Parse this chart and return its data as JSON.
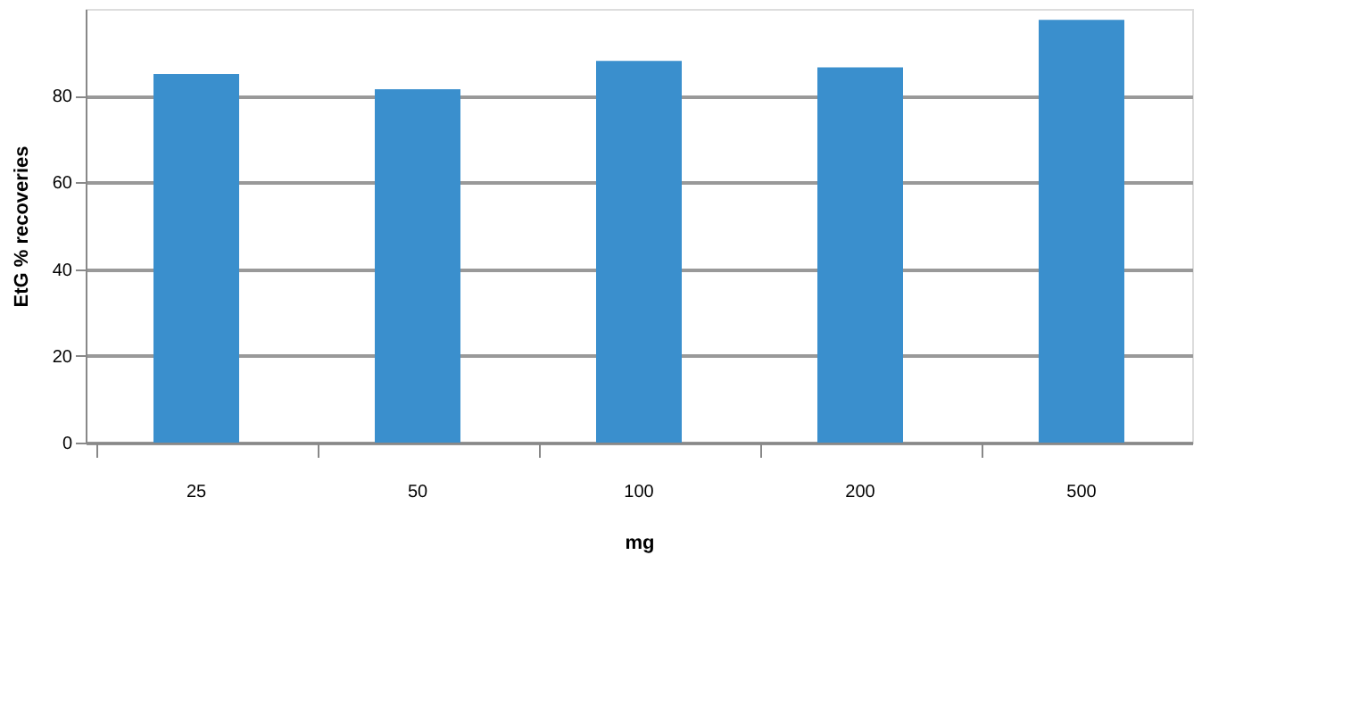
{
  "chart_data": {
    "type": "bar",
    "xlabel": "mg",
    "ylabel": "EtG % recoveries",
    "categories": [
      "25",
      "50",
      "100",
      "200",
      "500"
    ],
    "values": [
      85,
      81.5,
      88,
      86.5,
      97.5
    ],
    "color": "#3a8fcd",
    "ylim": [
      0,
      100
    ],
    "yticks": [
      0,
      20,
      40,
      60,
      80
    ],
    "grid": "y"
  }
}
